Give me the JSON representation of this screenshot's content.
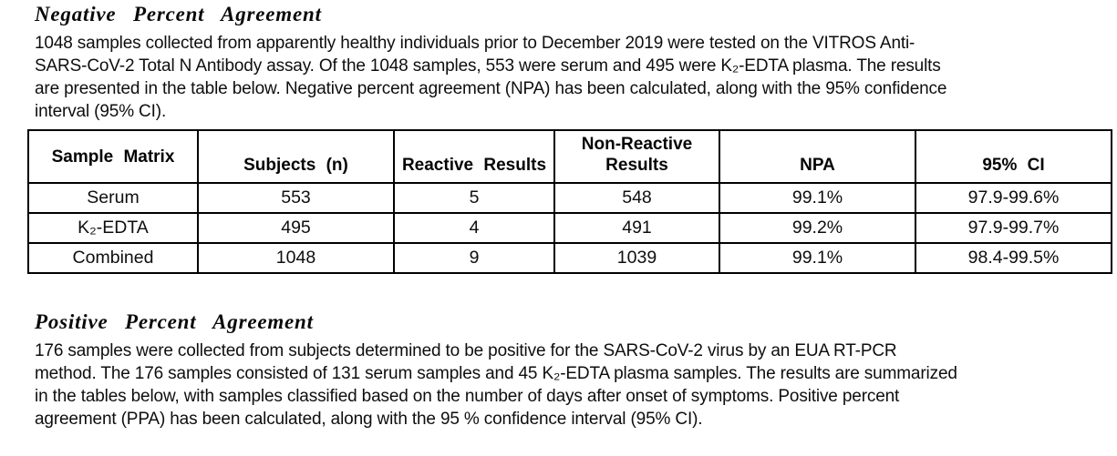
{
  "npa": {
    "heading": "Negative Percent Agreement",
    "paragraph": "1048 samples collected from apparently healthy individuals prior to December 2019 were tested on the VITROS Anti-\nSARS-CoV-2 Total N Antibody assay. Of the 1048 samples, 553 were serum and 495 were K₂-EDTA plasma. The results\nare presented in the table below. Negative percent agreement (NPA) has been calculated, along with the 95% confidence\ninterval (95% CI).",
    "table": {
      "columns": [
        "Sample Matrix",
        "Subjects (n)",
        "Reactive Results",
        "Non-Reactive\nResults",
        "NPA",
        "95% CI"
      ],
      "rows": [
        [
          "Serum",
          "553",
          "5",
          "548",
          "99.1%",
          "97.9-99.6%"
        ],
        [
          "K₂-EDTA",
          "495",
          "4",
          "491",
          "99.2%",
          "97.9-99.7%"
        ],
        [
          "Combined",
          "1048",
          "9",
          "1039",
          "99.1%",
          "98.4-99.5%"
        ]
      ]
    }
  },
  "ppa": {
    "heading": "Positive Percent Agreement",
    "paragraph": "176 samples were collected from subjects determined to be positive for the SARS-CoV-2 virus by an EUA RT-PCR\nmethod. The 176 samples consisted of 131 serum samples and 45 K₂-EDTA plasma samples. The results are summarized\nin the tables below, with samples classified based on the number of days after onset of symptoms. Positive percent\nagreement (PPA) has been calculated, along with the 95 % confidence interval (95% CI)."
  }
}
